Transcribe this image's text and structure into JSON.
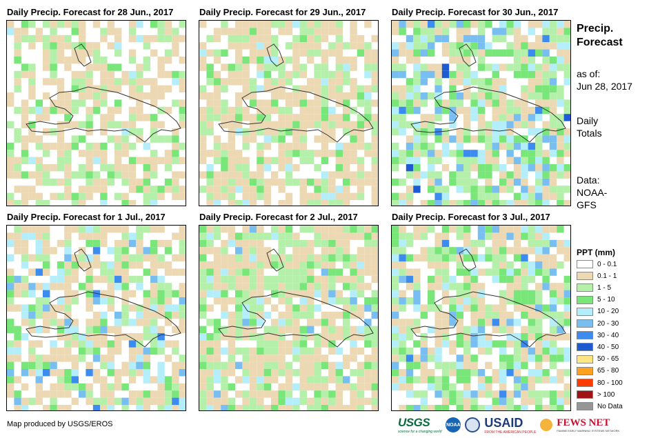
{
  "panels": [
    {
      "title": "Daily Precip. Forecast for 28 Jun., 2017"
    },
    {
      "title": "Daily Precip. Forecast for 29 Jun., 2017"
    },
    {
      "title": "Daily Precip. Forecast for 30 Jun., 2017"
    },
    {
      "title": "Daily Precip. Forecast for 1 Jul., 2017"
    },
    {
      "title": "Daily Precip. Forecast for 2 Jul., 2017"
    },
    {
      "title": "Daily Precip. Forecast for 3 Jul., 2017"
    }
  ],
  "sidebar": {
    "heading_line1": "Precip.",
    "heading_line2": "Forecast",
    "asof_line1": "as of:",
    "asof_line2": "Jun 28, 2017",
    "totals_line1": "Daily",
    "totals_line2": "Totals",
    "data_line1": "Data:",
    "data_line2": "NOAA-",
    "data_line3": "GFS"
  },
  "legend": {
    "title": "PPT (mm)",
    "items": [
      {
        "label": "0 - 0.1",
        "color": "#ffffff"
      },
      {
        "label": "0.1 - 1",
        "color": "#ecd9b3"
      },
      {
        "label": "1 - 5",
        "color": "#b4f0aa"
      },
      {
        "label": "5 - 10",
        "color": "#78e678"
      },
      {
        "label": "10 - 20",
        "color": "#b4eefa"
      },
      {
        "label": "20 - 30",
        "color": "#78bef0"
      },
      {
        "label": "30 - 40",
        "color": "#3c8cf0"
      },
      {
        "label": "40 - 50",
        "color": "#1e5ad2"
      },
      {
        "label": "50 - 65",
        "color": "#ffe682"
      },
      {
        "label": "65 - 80",
        "color": "#ffa01e"
      },
      {
        "label": "80 - 100",
        "color": "#ff3c00"
      },
      {
        "label": "> 100",
        "color": "#a01414"
      },
      {
        "label": "No Data",
        "color": "#969696"
      }
    ]
  },
  "footer": {
    "credit": "Map produced by USGS/EROS",
    "usgs": "USGS",
    "usgs_tag": "science for a changing world",
    "noaa": "NOAA",
    "fews": "FEWS NET",
    "usaid": "USAID",
    "usaid_tag": "FROM THE AMERICAN PEOPLE",
    "fews_tag": "FAMINE EARLY WARNING SYSTEMS NETWORK"
  }
}
